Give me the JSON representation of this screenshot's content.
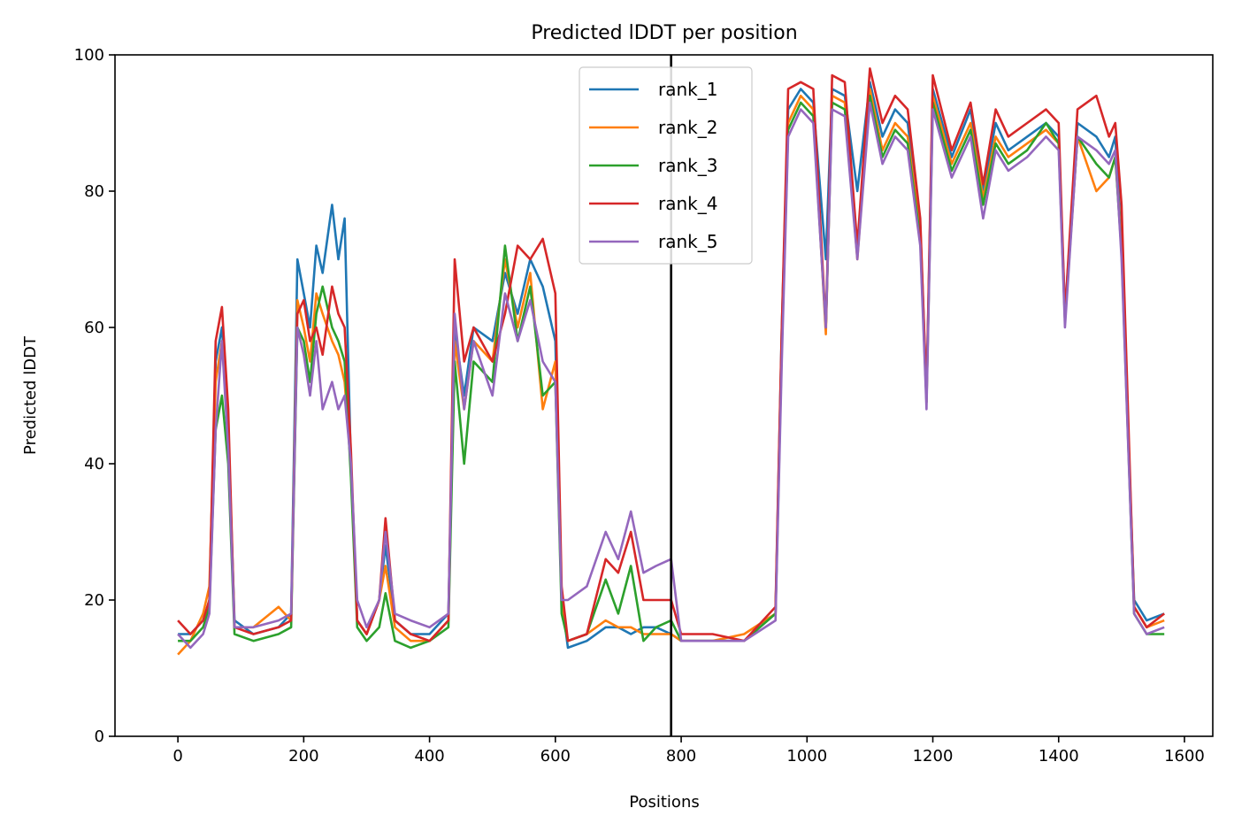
{
  "chart_data": {
    "type": "line",
    "title": "Predicted lDDT per position",
    "xlabel": "Positions",
    "ylabel": "Predicted lDDT",
    "xlim": [
      -100,
      1645
    ],
    "ylim": [
      0,
      100
    ],
    "xticks": [
      0,
      200,
      400,
      600,
      800,
      1000,
      1200,
      1400,
      1600
    ],
    "yticks": [
      0,
      20,
      40,
      60,
      80,
      100
    ],
    "vline_x": 784,
    "grid": false,
    "legend_position": "top-center",
    "colors": [
      "#1f77b4",
      "#ff7f0e",
      "#2ca02c",
      "#d62728",
      "#9467bd"
    ],
    "series": [
      {
        "name": "rank_1",
        "x": [
          0,
          20,
          40,
          50,
          60,
          70,
          80,
          90,
          120,
          160,
          180,
          190,
          200,
          210,
          220,
          230,
          245,
          255,
          265,
          275,
          285,
          300,
          320,
          330,
          345,
          370,
          400,
          430,
          440,
          455,
          470,
          500,
          520,
          540,
          560,
          580,
          600,
          610,
          620,
          650,
          680,
          700,
          720,
          740,
          760,
          784,
          800,
          850,
          900,
          950,
          960,
          970,
          990,
          1010,
          1030,
          1040,
          1060,
          1080,
          1100,
          1120,
          1140,
          1160,
          1180,
          1190,
          1200,
          1230,
          1260,
          1280,
          1300,
          1320,
          1350,
          1380,
          1400,
          1410,
          1430,
          1460,
          1480,
          1490,
          1500,
          1520,
          1540,
          1568
        ],
        "y": [
          15,
          15,
          17,
          20,
          55,
          60,
          45,
          17,
          15,
          16,
          18,
          70,
          65,
          60,
          72,
          68,
          78,
          70,
          76,
          40,
          17,
          15,
          20,
          28,
          17,
          15,
          15,
          18,
          60,
          50,
          60,
          58,
          68,
          62,
          70,
          66,
          58,
          20,
          13,
          14,
          16,
          16,
          15,
          16,
          16,
          15,
          14,
          14,
          14,
          18,
          60,
          92,
          95,
          93,
          70,
          95,
          94,
          80,
          96,
          88,
          92,
          90,
          75,
          50,
          95,
          85,
          92,
          80,
          90,
          86,
          88,
          90,
          88,
          62,
          90,
          88,
          85,
          88,
          72,
          20,
          17,
          18
        ]
      },
      {
        "name": "rank_2",
        "x": [
          0,
          20,
          40,
          50,
          60,
          70,
          80,
          90,
          120,
          160,
          180,
          190,
          200,
          210,
          220,
          230,
          245,
          255,
          265,
          275,
          285,
          300,
          320,
          330,
          345,
          370,
          400,
          430,
          440,
          455,
          470,
          500,
          520,
          540,
          560,
          580,
          600,
          610,
          620,
          650,
          680,
          700,
          720,
          740,
          760,
          784,
          800,
          850,
          900,
          950,
          960,
          970,
          990,
          1010,
          1030,
          1040,
          1060,
          1080,
          1100,
          1120,
          1140,
          1160,
          1180,
          1190,
          1200,
          1230,
          1260,
          1280,
          1300,
          1320,
          1350,
          1380,
          1400,
          1410,
          1430,
          1460,
          1480,
          1490,
          1500,
          1520,
          1540,
          1568
        ],
        "y": [
          12,
          14,
          18,
          22,
          52,
          58,
          44,
          16,
          16,
          19,
          17,
          64,
          60,
          55,
          65,
          62,
          58,
          56,
          52,
          40,
          17,
          15,
          20,
          25,
          16,
          14,
          14,
          17,
          58,
          48,
          58,
          55,
          70,
          60,
          68,
          48,
          55,
          20,
          14,
          15,
          17,
          16,
          16,
          15,
          15,
          15,
          14,
          14,
          15,
          18,
          58,
          90,
          94,
          92,
          59,
          94,
          93,
          70,
          95,
          86,
          90,
          88,
          74,
          49,
          94,
          84,
          90,
          79,
          88,
          85,
          87,
          89,
          87,
          61,
          88,
          80,
          82,
          85,
          72,
          19,
          16,
          17
        ]
      },
      {
        "name": "rank_3",
        "x": [
          0,
          20,
          40,
          50,
          60,
          70,
          80,
          90,
          120,
          160,
          180,
          190,
          200,
          210,
          220,
          230,
          245,
          255,
          265,
          275,
          285,
          300,
          320,
          330,
          345,
          370,
          400,
          430,
          440,
          455,
          470,
          500,
          520,
          540,
          560,
          580,
          600,
          610,
          620,
          650,
          680,
          700,
          720,
          740,
          760,
          784,
          800,
          850,
          900,
          950,
          960,
          970,
          990,
          1010,
          1030,
          1040,
          1060,
          1080,
          1100,
          1120,
          1140,
          1160,
          1180,
          1190,
          1200,
          1230,
          1260,
          1280,
          1300,
          1320,
          1350,
          1380,
          1400,
          1410,
          1430,
          1460,
          1480,
          1490,
          1500,
          1520,
          1540,
          1568
        ],
        "y": [
          14,
          14,
          16,
          19,
          45,
          50,
          40,
          15,
          14,
          15,
          16,
          60,
          58,
          52,
          62,
          66,
          60,
          58,
          55,
          38,
          16,
          14,
          16,
          21,
          14,
          13,
          14,
          16,
          55,
          40,
          55,
          52,
          72,
          58,
          66,
          50,
          52,
          18,
          14,
          15,
          23,
          18,
          25,
          14,
          16,
          17,
          14,
          14,
          14,
          18,
          57,
          89,
          93,
          91,
          60,
          93,
          92,
          72,
          94,
          85,
          89,
          87,
          73,
          49,
          93,
          83,
          89,
          78,
          87,
          84,
          86,
          90,
          87,
          61,
          88,
          84,
          82,
          85,
          71,
          18,
          15,
          15
        ]
      },
      {
        "name": "rank_4",
        "x": [
          0,
          20,
          40,
          50,
          60,
          70,
          80,
          90,
          120,
          160,
          180,
          190,
          200,
          210,
          220,
          230,
          245,
          255,
          265,
          275,
          285,
          300,
          320,
          330,
          345,
          370,
          400,
          430,
          440,
          455,
          470,
          500,
          520,
          540,
          560,
          580,
          600,
          610,
          620,
          650,
          680,
          700,
          720,
          740,
          760,
          784,
          800,
          850,
          900,
          950,
          960,
          970,
          990,
          1010,
          1030,
          1040,
          1060,
          1080,
          1100,
          1120,
          1140,
          1160,
          1180,
          1190,
          1200,
          1230,
          1260,
          1280,
          1300,
          1320,
          1350,
          1380,
          1400,
          1410,
          1430,
          1460,
          1480,
          1490,
          1500,
          1520,
          1540,
          1568
        ],
        "y": [
          17,
          15,
          17,
          20,
          58,
          63,
          48,
          16,
          15,
          16,
          17,
          62,
          64,
          58,
          60,
          56,
          66,
          62,
          60,
          42,
          17,
          15,
          20,
          32,
          17,
          15,
          14,
          17,
          70,
          55,
          60,
          55,
          62,
          72,
          70,
          73,
          65,
          22,
          14,
          15,
          26,
          24,
          30,
          20,
          20,
          20,
          15,
          15,
          14,
          19,
          60,
          95,
          96,
          95,
          60,
          97,
          96,
          72,
          98,
          90,
          94,
          92,
          76,
          50,
          97,
          86,
          93,
          81,
          92,
          88,
          90,
          92,
          90,
          62,
          92,
          94,
          88,
          90,
          78,
          19,
          16,
          18
        ]
      },
      {
        "name": "rank_5",
        "x": [
          0,
          20,
          40,
          50,
          60,
          70,
          80,
          90,
          120,
          160,
          180,
          190,
          200,
          210,
          220,
          230,
          245,
          255,
          265,
          275,
          285,
          300,
          320,
          330,
          345,
          370,
          400,
          430,
          440,
          455,
          470,
          500,
          520,
          540,
          560,
          580,
          600,
          610,
          620,
          650,
          680,
          700,
          720,
          740,
          760,
          784,
          800,
          850,
          900,
          950,
          960,
          970,
          990,
          1010,
          1030,
          1040,
          1060,
          1080,
          1100,
          1120,
          1140,
          1160,
          1180,
          1190,
          1200,
          1230,
          1260,
          1280,
          1300,
          1320,
          1350,
          1380,
          1400,
          1410,
          1430,
          1460,
          1480,
          1490,
          1500,
          1520,
          1540,
          1568
        ],
        "y": [
          15,
          13,
          15,
          18,
          45,
          58,
          42,
          16,
          16,
          17,
          18,
          60,
          56,
          50,
          58,
          48,
          52,
          48,
          50,
          40,
          20,
          16,
          20,
          30,
          18,
          17,
          16,
          18,
          62,
          48,
          58,
          50,
          65,
          58,
          64,
          55,
          52,
          20,
          20,
          22,
          30,
          26,
          33,
          24,
          25,
          26,
          14,
          14,
          14,
          17,
          55,
          88,
          92,
          90,
          60,
          92,
          91,
          70,
          93,
          84,
          88,
          86,
          72,
          48,
          92,
          82,
          88,
          76,
          86,
          83,
          85,
          88,
          86,
          60,
          88,
          86,
          84,
          86,
          70,
          18,
          15,
          16
        ]
      }
    ]
  }
}
